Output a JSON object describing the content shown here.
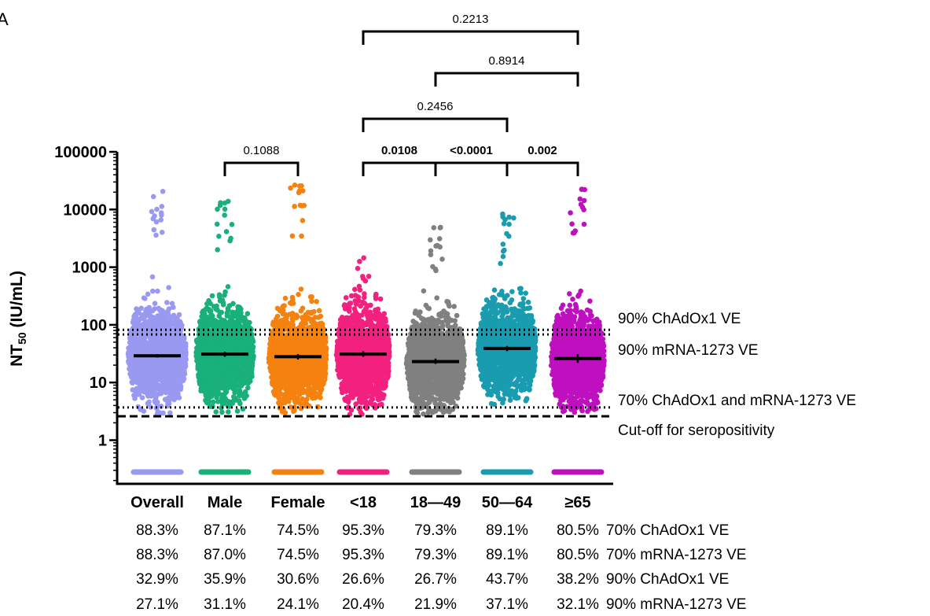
{
  "panel_label": "A",
  "chart_data": {
    "type": "scatter",
    "subtype": "dot-plot with median and 95% CI",
    "ylabel": "NT",
    "ylabel_sub": "50",
    "ylabel_unit": " (IU/mL)",
    "yscale": "log",
    "ylim": [
      0.27,
      100000
    ],
    "yticks": [
      {
        "value": 1,
        "label": "1"
      },
      {
        "value": 10,
        "label": "10"
      },
      {
        "value": 100,
        "label": "100"
      },
      {
        "value": 1000,
        "label": "1000"
      },
      {
        "value": 10000,
        "label": "10000"
      },
      {
        "value": 100000,
        "label": "100000"
      }
    ],
    "categories": [
      "Overall",
      "Male",
      "Female",
      "<18",
      "18—49",
      "50—64",
      "≥65"
    ],
    "series": [
      {
        "name": "Overall",
        "color": "#9999f2",
        "median": 29,
        "ci": [
          27,
          31
        ],
        "min": 2.8,
        "max": 27000,
        "max_width": 62
      },
      {
        "name": "Male",
        "color": "#19b07a",
        "median": 31,
        "ci": [
          28,
          34
        ],
        "min": 3.0,
        "max": 14500,
        "max_width": 62
      },
      {
        "name": "Female",
        "color": "#f5820f",
        "median": 28,
        "ci": [
          25,
          31
        ],
        "min": 2.8,
        "max": 27000,
        "max_width": 62
      },
      {
        "name": "<18",
        "color": "#f2207e",
        "median": 31,
        "ci": [
          28,
          35
        ],
        "min": 2.8,
        "max": 1500,
        "max_width": 56
      },
      {
        "name": "18—49",
        "color": "#808080",
        "median": 23,
        "ci": [
          21,
          26
        ],
        "min": 2.8,
        "max": 5500,
        "max_width": 62
      },
      {
        "name": "50—64",
        "color": "#1a9cb0",
        "median": 39,
        "ci": [
          35,
          43
        ],
        "min": 4.0,
        "max": 9000,
        "max_width": 62
      },
      {
        "name": "≥65",
        "color": "#bf10c0",
        "median": 26,
        "ci": [
          22,
          31
        ],
        "min": 2.8,
        "max": 27000,
        "max_width": 56
      }
    ],
    "below_lod_value": 0.28,
    "reference_lines": [
      {
        "value": 82,
        "style": "dotted",
        "label": "90% ChAdOx1 VE"
      },
      {
        "value": 68,
        "style": "dotted",
        "label": "90% mRNA-1273 VE"
      },
      {
        "value": 3.7,
        "style": "dotted",
        "label": "70% ChAdOx1 and mRNA-1273 VE"
      },
      {
        "value": 2.6,
        "style": "dashed",
        "label": "Cut-off for seropositivity"
      }
    ],
    "comparisons": [
      {
        "from": 1,
        "to": 2,
        "p": "0.1088",
        "bold": false,
        "level": 0
      },
      {
        "from": 3,
        "to": 4,
        "p": "0.0108",
        "bold": true,
        "level": 0
      },
      {
        "from": 4,
        "to": 5,
        "p": "<0.0001",
        "bold": true,
        "level": 0
      },
      {
        "from": 5,
        "to": 6,
        "p": "0.002",
        "bold": true,
        "level": 0
      },
      {
        "from": 3,
        "to": 5,
        "p": "0.2456",
        "bold": false,
        "level": 1
      },
      {
        "from": 4,
        "to": 6,
        "p": "0.8914",
        "bold": false,
        "level": 2
      },
      {
        "from": 3,
        "to": 6,
        "p": "0.2213",
        "bold": false,
        "level": 3
      }
    ],
    "table": {
      "rows": [
        {
          "label": "70% ChAdOx1 VE",
          "values": [
            "88.3%",
            "87.1%",
            "74.5%",
            "95.3%",
            "79.3%",
            "89.1%",
            "80.5%"
          ]
        },
        {
          "label": "70% mRNA-1273 VE",
          "values": [
            "88.3%",
            "87.0%",
            "74.5%",
            "95.3%",
            "79.3%",
            "89.1%",
            "80.5%"
          ]
        },
        {
          "label": "90% ChAdOx1 VE",
          "values": [
            "32.9%",
            "35.9%",
            "30.6%",
            "26.6%",
            "26.7%",
            "43.7%",
            "38.2%"
          ]
        },
        {
          "label": "90% mRNA-1273 VE",
          "values": [
            "27.1%",
            "31.1%",
            "24.1%",
            "20.4%",
            "21.9%",
            "37.1%",
            "32.1%"
          ]
        }
      ]
    }
  }
}
